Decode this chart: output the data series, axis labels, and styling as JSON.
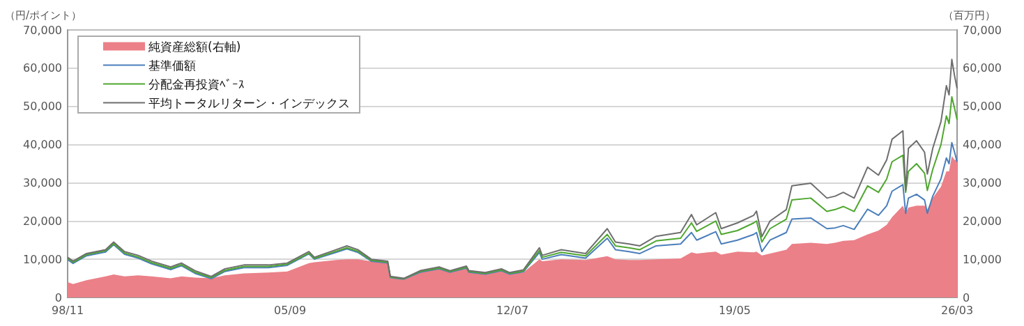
{
  "chart_data": {
    "type": "line",
    "ylabel": "（円/ポイント）",
    "y2label": "（百万円）",
    "x": [
      "1998-11",
      "1999-01",
      "1999-06",
      "2000-01",
      "2000-04",
      "2000-08",
      "2001-01",
      "2001-06",
      "2002-01",
      "2002-05",
      "2002-10",
      "2003-04",
      "2003-09",
      "2004-04",
      "2005-01",
      "2005-08",
      "2006-04",
      "2006-06",
      "2007-02",
      "2007-06",
      "2007-10",
      "2008-03",
      "2008-09",
      "2008-10",
      "2009-03",
      "2009-09",
      "2010-04",
      "2010-08",
      "2011-02",
      "2011-03",
      "2011-09",
      "2012-03",
      "2012-06",
      "2012-11",
      "2013-05",
      "2013-06",
      "2014-01",
      "2014-10",
      "2015-06",
      "2015-09",
      "2016-02",
      "2016-06",
      "2016-12",
      "2017-09",
      "2018-01",
      "2018-03",
      "2018-10",
      "2018-12",
      "2019-06",
      "2019-12",
      "2020-01",
      "2020-03",
      "2020-06",
      "2020-12",
      "2021-02",
      "2021-09",
      "2022-03",
      "2022-06",
      "2022-09",
      "2023-01",
      "2023-06",
      "2023-10",
      "2024-01",
      "2024-03",
      "2024-07",
      "2024-08",
      "2024-09",
      "2024-12",
      "2025-03",
      "2025-04",
      "2025-06",
      "2025-09",
      "2025-11",
      "2025-12",
      "2026-01",
      "2026-02",
      "2026-03"
    ],
    "series": [
      {
        "name": "純資産総額(右軸)",
        "type": "area",
        "axis": "y2",
        "color": "#eb8088",
        "values": [
          4000,
          3500,
          4500,
          5500,
          6000,
          5500,
          5800,
          5500,
          5000,
          5500,
          5200,
          5000,
          5800,
          6300,
          6500,
          6800,
          9000,
          9200,
          9800,
          10000,
          10000,
          9500,
          9000,
          5000,
          5000,
          6800,
          7500,
          6800,
          7500,
          7000,
          6400,
          7000,
          6200,
          6500,
          10000,
          9500,
          10000,
          9800,
          10800,
          10000,
          9800,
          9800,
          10000,
          10200,
          11800,
          11500,
          12000,
          11200,
          12000,
          11800,
          12000,
          11000,
          11500,
          12500,
          14000,
          14300,
          14000,
          14300,
          14800,
          15000,
          16500,
          17500,
          19000,
          21000,
          24000,
          22000,
          23500,
          24000,
          24000,
          23000,
          26000,
          29000,
          33000,
          33000,
          37000,
          36000,
          36000
        ]
      },
      {
        "name": "基準価額",
        "color": "#4a7ebb",
        "values": [
          9900,
          8900,
          10900,
          11900,
          13800,
          11300,
          10300,
          8800,
          7300,
          8300,
          6300,
          4900,
          6800,
          7800,
          7800,
          8400,
          11400,
          10000,
          11800,
          12700,
          11800,
          9500,
          9000,
          5200,
          4800,
          6600,
          7500,
          6600,
          7700,
          6600,
          6100,
          7000,
          6100,
          6700,
          11800,
          10000,
          11200,
          10300,
          15500,
          12500,
          12000,
          11500,
          13500,
          14000,
          17000,
          15000,
          17200,
          14000,
          15000,
          16500,
          17000,
          12000,
          15000,
          17000,
          20500,
          20800,
          18000,
          18200,
          18800,
          17800,
          23100,
          21500,
          24000,
          27800,
          29500,
          22000,
          26000,
          27000,
          25500,
          22000,
          26500,
          31000,
          36500,
          35000,
          40500,
          38000,
          35500
        ]
      },
      {
        "name": "分配金再投資ﾍﾞｰｽ",
        "color": "#4ea72e",
        "values": [
          10200,
          9200,
          11200,
          12200,
          14100,
          11600,
          10600,
          9100,
          7600,
          8600,
          6600,
          5200,
          7100,
          8100,
          8100,
          8700,
          11600,
          10200,
          12100,
          13000,
          12100,
          9700,
          9200,
          5300,
          4900,
          6800,
          7700,
          6800,
          7900,
          6800,
          6300,
          7200,
          6300,
          6900,
          12300,
          10500,
          11800,
          10900,
          16500,
          13500,
          13000,
          12500,
          14800,
          15500,
          19500,
          17300,
          20000,
          16500,
          17500,
          19500,
          20000,
          14500,
          18000,
          20500,
          25500,
          26000,
          22500,
          23000,
          23800,
          22500,
          29200,
          27500,
          31000,
          35500,
          37200,
          27500,
          33000,
          35000,
          32500,
          28000,
          33500,
          40000,
          47500,
          45500,
          52500,
          49500,
          46500
        ]
      },
      {
        "name": "平均トータルリターン・インデックス",
        "color": "#6e6e6e",
        "values": [
          10500,
          9500,
          11500,
          12500,
          14500,
          12000,
          11000,
          9500,
          8000,
          9000,
          7000,
          5500,
          7500,
          8500,
          8500,
          9000,
          12000,
          10500,
          12500,
          13500,
          12500,
          10000,
          9500,
          5500,
          5000,
          7000,
          8000,
          7000,
          8200,
          7000,
          6500,
          7500,
          6500,
          7200,
          13000,
          11000,
          12500,
          11500,
          18000,
          14500,
          14000,
          13500,
          16000,
          17000,
          21700,
          19000,
          22200,
          18000,
          19500,
          21500,
          22600,
          15900,
          20000,
          23000,
          29200,
          29900,
          26000,
          26500,
          27500,
          26000,
          34100,
          32000,
          36000,
          41400,
          43600,
          28000,
          39000,
          41000,
          38000,
          32300,
          39000,
          46000,
          55400,
          53000,
          62300,
          58000,
          54700
        ]
      }
    ],
    "xlim": [
      "1998-11",
      "2026-03"
    ],
    "xticks": [
      {
        "value": "1998-11",
        "label": "98/11"
      },
      {
        "value": "2005-09",
        "label": "05/09"
      },
      {
        "value": "2012-07",
        "label": "12/07"
      },
      {
        "value": "2019-05",
        "label": "19/05"
      },
      {
        "value": "2026-03",
        "label": "26/03"
      }
    ],
    "ylim": [
      0,
      70000
    ],
    "yticks": [
      0,
      {
        "value": 10000,
        "label": "10,000"
      },
      {
        "value": 20000,
        "label": "20,000"
      },
      {
        "value": 30000,
        "label": "30,000"
      },
      {
        "value": 40000,
        "label": "40,000"
      },
      {
        "value": 50000,
        "label": "50,000"
      },
      {
        "value": 60000,
        "label": "60,000"
      },
      {
        "value": 70000,
        "label": "70,000"
      }
    ],
    "y2lim": [
      0,
      70000
    ],
    "y2ticks": [
      0,
      {
        "value": 10000,
        "label": "10,000"
      },
      {
        "value": 20000,
        "label": "20,000"
      },
      {
        "value": 30000,
        "label": "30,000"
      },
      {
        "value": 40000,
        "label": "40,000"
      },
      {
        "value": 50000,
        "label": "50,000"
      },
      {
        "value": 60000,
        "label": "60,000"
      },
      {
        "value": 70000,
        "label": "70,000"
      }
    ],
    "grid": "y",
    "legend": "top left"
  }
}
